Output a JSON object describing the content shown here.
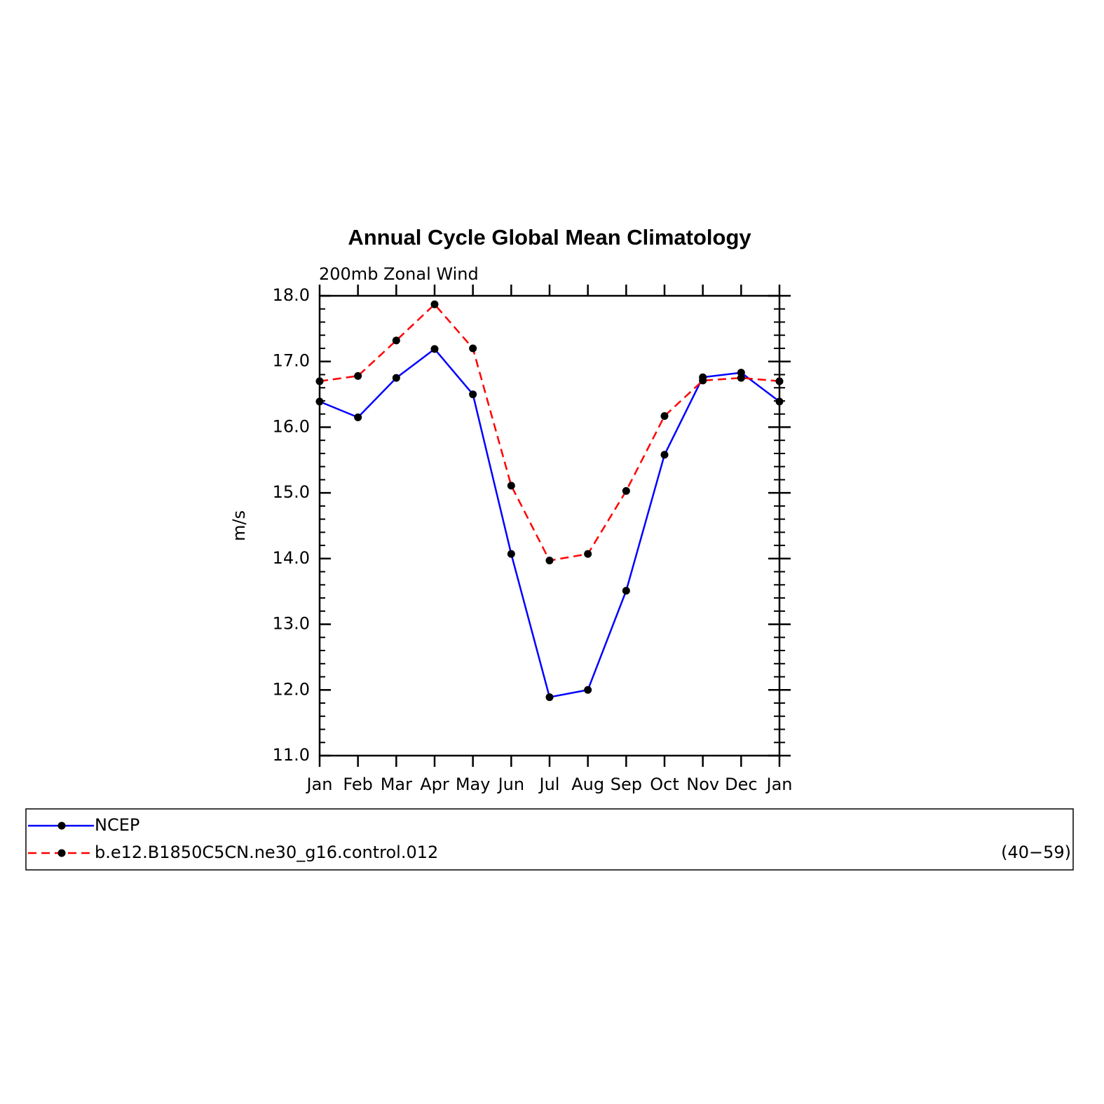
{
  "chart_data": {
    "type": "line",
    "title": "Annual Cycle Global Mean Climatology",
    "subtitle": "200mb Zonal Wind",
    "y_label": "m/s",
    "categories": [
      "Jan",
      "Feb",
      "Mar",
      "Apr",
      "May",
      "Jun",
      "Jul",
      "Aug",
      "Sep",
      "Oct",
      "Nov",
      "Dec",
      "Jan"
    ],
    "series": [
      {
        "name": "NCEP",
        "color": "#0000ff",
        "dash": false,
        "values": [
          16.39,
          16.15,
          16.75,
          17.19,
          16.5,
          14.07,
          11.89,
          12.0,
          13.51,
          15.58,
          16.76,
          16.83,
          16.39
        ]
      },
      {
        "name": "b.e12.B1850C5CN.ne30_g16.control.012",
        "color": "#ff0000",
        "dash": true,
        "values": [
          16.7,
          16.78,
          17.32,
          17.87,
          17.2,
          15.11,
          13.97,
          14.07,
          15.03,
          16.17,
          16.71,
          16.75,
          16.7
        ]
      }
    ],
    "legend_note": "(40−59)",
    "ylim": [
      11,
      18
    ],
    "yticks": [
      {
        "value": 11,
        "label": "11.0"
      },
      {
        "value": 12,
        "label": "12.0"
      },
      {
        "value": 13,
        "label": "13.0"
      },
      {
        "value": 14,
        "label": "14.0"
      },
      {
        "value": 15,
        "label": "15.0"
      },
      {
        "value": 16,
        "label": "16.0"
      },
      {
        "value": 17,
        "label": "17.0"
      },
      {
        "value": 18,
        "label": "18.0"
      }
    ]
  }
}
